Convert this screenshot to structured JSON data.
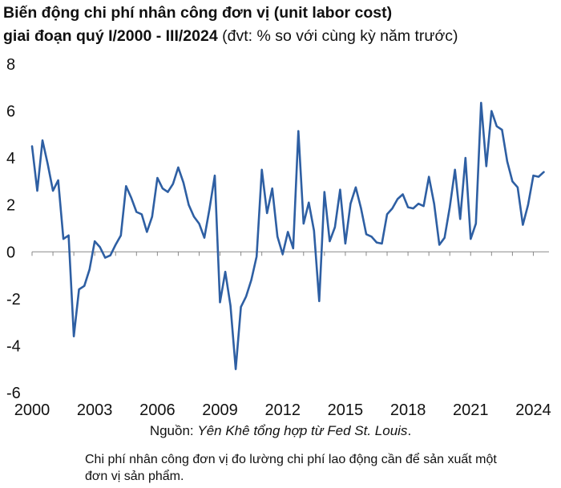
{
  "title": {
    "line1": "Biến động chi phí nhân công đơn vị (unit labor cost)",
    "line2_bold": "giai đoạn quý I/2000 - III/2024",
    "line2_unit": " (đvt: % so với cùng kỳ năm trước)"
  },
  "source": {
    "prefix": "Nguồn: ",
    "text": "Yên Khê tổng hợp từ Fed St. Louis",
    "suffix": "."
  },
  "note": "Chi phí nhân công đơn vị đo lường chi phí lao động cần để sản xuất một đơn vị sản phẩm.",
  "colors": {
    "line": "#2e5fa3",
    "axis": "#888888"
  },
  "chart_data": {
    "type": "line",
    "title": "Biến động chi phí nhân công đơn vị (unit labor cost) giai đoạn quý I/2000 - III/2024 (đvt: % so với cùng kỳ năm trước)",
    "xlabel": "",
    "ylabel": "",
    "ylim": [
      -6,
      8
    ],
    "yticks": [
      -6,
      -4,
      -2,
      0,
      2,
      4,
      6,
      8
    ],
    "ytick_labels": [
      "-6",
      "-4",
      "-2",
      "0",
      "2",
      "4",
      "6",
      "8"
    ],
    "xlim": [
      2000,
      2024.75
    ],
    "xticks": [
      2000,
      2003,
      2006,
      2009,
      2012,
      2015,
      2018,
      2021,
      2024
    ],
    "xtick_labels": [
      "2000",
      "2003",
      "2006",
      "2009",
      "2012",
      "2015",
      "2018",
      "2021",
      "2024"
    ],
    "grid": false,
    "legend": "none",
    "x": [
      2000.0,
      2000.25,
      2000.5,
      2000.75,
      2001.0,
      2001.25,
      2001.5,
      2001.75,
      2002.0,
      2002.25,
      2002.5,
      2002.75,
      2003.0,
      2003.25,
      2003.5,
      2003.75,
      2004.0,
      2004.25,
      2004.5,
      2004.75,
      2005.0,
      2005.25,
      2005.5,
      2005.75,
      2006.0,
      2006.25,
      2006.5,
      2006.75,
      2007.0,
      2007.25,
      2007.5,
      2007.75,
      2008.0,
      2008.25,
      2008.5,
      2008.75,
      2009.0,
      2009.25,
      2009.5,
      2009.75,
      2010.0,
      2010.25,
      2010.5,
      2010.75,
      2011.0,
      2011.25,
      2011.5,
      2011.75,
      2012.0,
      2012.25,
      2012.5,
      2012.75,
      2013.0,
      2013.25,
      2013.5,
      2013.75,
      2014.0,
      2014.25,
      2014.5,
      2014.75,
      2015.0,
      2015.25,
      2015.5,
      2015.75,
      2016.0,
      2016.25,
      2016.5,
      2016.75,
      2017.0,
      2017.25,
      2017.5,
      2017.75,
      2018.0,
      2018.25,
      2018.5,
      2018.75,
      2019.0,
      2019.25,
      2019.5,
      2019.75,
      2020.0,
      2020.25,
      2020.5,
      2020.75,
      2021.0,
      2021.25,
      2021.5,
      2021.75,
      2022.0,
      2022.25,
      2022.5,
      2022.75,
      2023.0,
      2023.25,
      2023.5,
      2023.75,
      2024.0,
      2024.25,
      2024.5
    ],
    "series": [
      {
        "values": [
          4.5,
          2.6,
          4.75,
          3.75,
          2.6,
          3.05,
          0.55,
          0.7,
          -3.6,
          -1.6,
          -1.45,
          -0.75,
          0.45,
          0.2,
          -0.25,
          -0.15,
          0.3,
          0.7,
          2.8,
          2.3,
          1.7,
          1.6,
          0.85,
          1.5,
          3.15,
          2.7,
          2.55,
          2.9,
          3.6,
          2.95,
          2.0,
          1.5,
          1.2,
          0.6,
          1.85,
          3.25,
          -2.15,
          -0.85,
          -2.3,
          -5.0,
          -2.35,
          -1.9,
          -1.2,
          -0.2,
          3.5,
          1.65,
          2.7,
          0.65,
          -0.1,
          0.85,
          0.15,
          5.15,
          1.2,
          2.1,
          0.9,
          -2.1,
          2.55,
          0.45,
          1.05,
          2.65,
          0.35,
          2.05,
          2.75,
          1.85,
          0.75,
          0.65,
          0.4,
          0.35,
          1.6,
          1.85,
          2.25,
          2.45,
          1.9,
          1.85,
          2.05,
          1.95,
          3.2,
          2.05,
          0.3,
          0.6,
          1.9,
          3.5,
          1.4,
          4.0,
          0.55,
          1.2,
          6.35,
          3.65,
          6.0,
          5.35,
          5.2,
          3.85,
          3.0,
          2.75,
          1.15,
          2.0,
          3.25,
          3.2,
          3.4
        ]
      }
    ]
  }
}
